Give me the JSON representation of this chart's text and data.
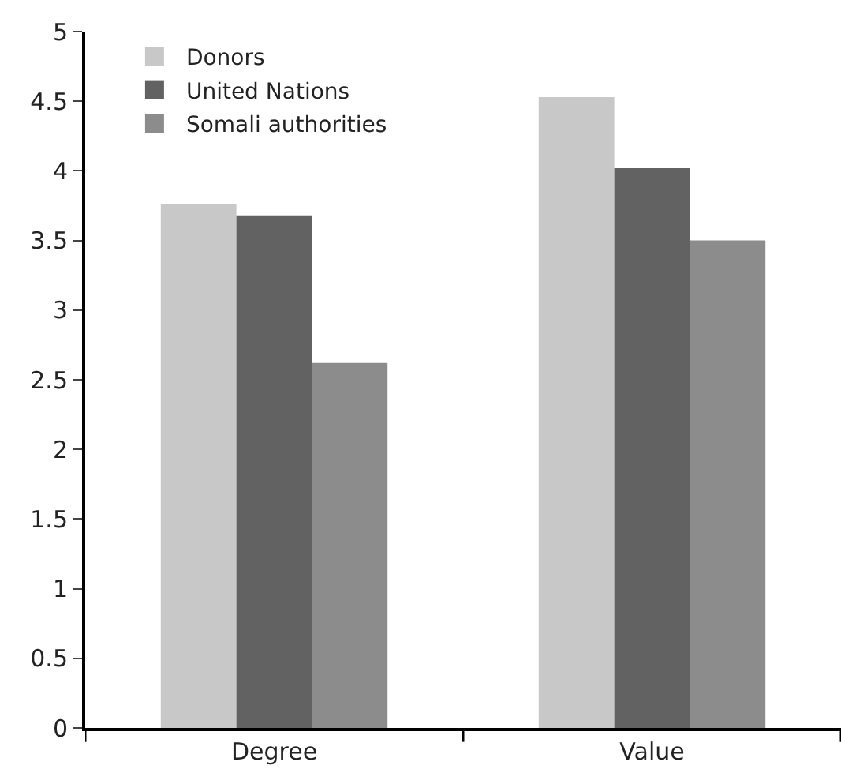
{
  "chart_data": {
    "type": "bar",
    "categories": [
      "Degree",
      "Value"
    ],
    "series": [
      {
        "name": "Donors",
        "color": "#c8c8c8",
        "values": [
          3.76,
          4.53
        ]
      },
      {
        "name": "United Nations",
        "color": "#626262",
        "values": [
          3.68,
          4.02
        ]
      },
      {
        "name": "Somali authorities",
        "color": "#8c8c8c",
        "values": [
          2.62,
          3.5
        ]
      }
    ],
    "ylim": [
      0,
      5
    ],
    "yticks": [
      0,
      0.5,
      1,
      1.5,
      2,
      2.5,
      3,
      3.5,
      4,
      4.5,
      5
    ],
    "grid": false,
    "legend": "top left"
  }
}
